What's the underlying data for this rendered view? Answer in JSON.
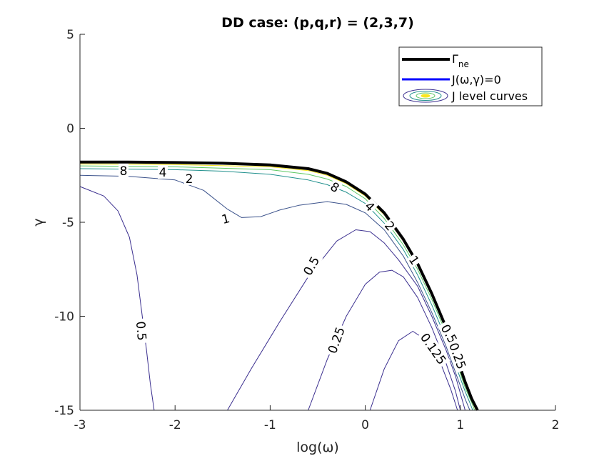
{
  "chart_data": {
    "type": "line",
    "title": "DD case: (p,q,r) = (2,3,7)",
    "xlabel": "log(ω)",
    "ylabel": "γ",
    "xlim": [
      -3,
      2
    ],
    "ylim": [
      -15,
      5
    ],
    "x_ticks": [
      "-3",
      "-2",
      "-1",
      "0",
      "1",
      "2"
    ],
    "y_ticks": [
      "5",
      "0",
      "-5",
      "-10",
      "-15"
    ],
    "legend_position": "top-right",
    "legend": [
      {
        "label": "Γ",
        "sub": "ne",
        "color": "#000000",
        "kind": "line"
      },
      {
        "label": "J(ω,γ)=0",
        "color": "#0000ff",
        "kind": "line"
      },
      {
        "label": "J level curves",
        "color": "#3d2fa0",
        "kind": "contour"
      }
    ],
    "series": [
      {
        "name": "Γne",
        "color": "#000000",
        "x": [
          -3,
          -2.5,
          -2,
          -1.5,
          -1,
          -0.6,
          -0.4,
          -0.2,
          0,
          0.2,
          0.4,
          0.55,
          0.7,
          0.85,
          0.95,
          1.05,
          1.12,
          1.18
        ],
        "y": [
          -1.8,
          -1.8,
          -1.82,
          -1.86,
          -1.95,
          -2.15,
          -2.4,
          -2.85,
          -3.5,
          -4.5,
          -5.9,
          -7.2,
          -8.8,
          -10.6,
          -12.0,
          -13.5,
          -14.4,
          -15
        ]
      }
    ],
    "contours": [
      {
        "level": "8",
        "color": "#f8e620",
        "x": [
          -3,
          -2,
          -1,
          -0.6,
          -0.4,
          -0.2,
          0,
          0.2,
          0.4,
          0.55,
          0.7,
          0.85,
          0.95,
          1.05,
          1.12,
          1.165
        ],
        "y": [
          -1.9,
          -1.93,
          -2.05,
          -2.25,
          -2.5,
          -2.95,
          -3.6,
          -4.6,
          -6.0,
          -7.3,
          -8.9,
          -10.7,
          -12.1,
          -13.6,
          -14.5,
          -15
        ]
      },
      {
        "level": "4",
        "color": "#5cc863",
        "x": [
          -3,
          -2,
          -1,
          -0.6,
          -0.4,
          -0.2,
          0,
          0.2,
          0.4,
          0.55,
          0.7,
          0.85,
          0.95,
          1.05,
          1.12,
          1.15
        ],
        "y": [
          -2.0,
          -2.05,
          -2.2,
          -2.45,
          -2.7,
          -3.1,
          -3.75,
          -4.8,
          -6.2,
          -7.5,
          -9.1,
          -10.9,
          -12.3,
          -13.8,
          -14.6,
          -15
        ]
      },
      {
        "level": "2",
        "color": "#21908d",
        "x": [
          -3,
          -2,
          -1.5,
          -1,
          -0.6,
          -0.4,
          -0.2,
          0,
          0.2,
          0.4,
          0.55,
          0.7,
          0.85,
          0.95,
          1.05,
          1.1,
          1.13
        ],
        "y": [
          -2.15,
          -2.2,
          -2.28,
          -2.45,
          -2.75,
          -3.0,
          -3.4,
          -4.0,
          -5.05,
          -6.45,
          -7.8,
          -9.4,
          -11.2,
          -12.6,
          -14.0,
          -14.6,
          -15
        ]
      },
      {
        "level": "1",
        "color": "#3b528b",
        "x": [
          -3,
          -2.5,
          -2,
          -1.7,
          -1.45,
          -1.3,
          -1.1,
          -0.9,
          -0.7,
          -0.4,
          -0.2,
          0,
          0.2,
          0.4,
          0.55,
          0.7,
          0.85,
          0.95,
          1.05,
          1.1
        ],
        "y": [
          -2.5,
          -2.55,
          -2.75,
          -3.3,
          -4.3,
          -4.75,
          -4.7,
          -4.35,
          -4.1,
          -3.9,
          -4.05,
          -4.5,
          -5.4,
          -6.8,
          -8.2,
          -9.8,
          -11.6,
          -13.0,
          -14.4,
          -15
        ]
      },
      {
        "level": "0.5",
        "color": "#3b2f8f",
        "x": [
          -3,
          -2.75,
          -2.6,
          -2.48,
          -2.4,
          -2.35,
          -2.3,
          -2.26,
          -2.22
        ],
        "y": [
          -3.1,
          -3.6,
          -4.4,
          -5.8,
          -7.8,
          -9.8,
          -11.8,
          -13.6,
          -15
        ]
      },
      {
        "level": "0.5",
        "color": "#3b2f8f",
        "x": [
          -1.45,
          -1.2,
          -0.9,
          -0.6,
          -0.3,
          -0.1,
          0.05,
          0.2,
          0.35,
          0.55,
          0.7,
          0.85,
          0.95,
          1.05
        ],
        "y": [
          -15,
          -12.8,
          -10.3,
          -7.9,
          -6.0,
          -5.4,
          -5.5,
          -6.1,
          -7.0,
          -8.4,
          -10.0,
          -11.8,
          -13.2,
          -15
        ]
      },
      {
        "level": "0.25",
        "color": "#3b2f8f",
        "x": [
          -0.6,
          -0.4,
          -0.2,
          0,
          0.15,
          0.28,
          0.4,
          0.55,
          0.7,
          0.85,
          0.95,
          1.0
        ],
        "y": [
          -15,
          -12.3,
          -10.0,
          -8.3,
          -7.65,
          -7.55,
          -7.9,
          -9.0,
          -10.6,
          -12.5,
          -14.0,
          -15
        ]
      },
      {
        "level": "0.125",
        "color": "#3b2f8f",
        "x": [
          0.05,
          0.2,
          0.35,
          0.5,
          0.65,
          0.8,
          0.9,
          0.97
        ],
        "y": [
          -15,
          -12.8,
          -11.3,
          -10.8,
          -11.3,
          -12.6,
          -13.9,
          -15
        ]
      }
    ],
    "contour_labels": [
      "8",
      "4",
      "2",
      "1",
      "8",
      "4",
      "2",
      "1",
      "0.5",
      "0.5",
      "0.25",
      "0.125",
      "0.5",
      "0.25"
    ]
  }
}
